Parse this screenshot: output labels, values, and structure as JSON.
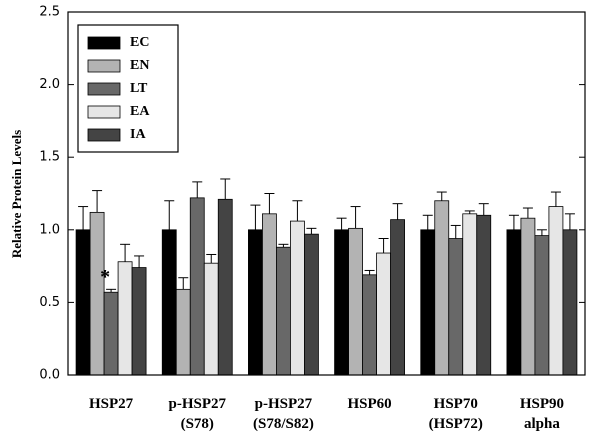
{
  "chart_data": {
    "type": "bar",
    "y_label": "Relative Protein Levels",
    "categories": [
      "HSP27",
      "p-HSP27\n(S78)",
      "p-HSP27\n(S78/S82)",
      "HSP60",
      "HSP70\n(HSP72)",
      "HSP90\nalpha"
    ],
    "series": [
      {
        "name": "EC",
        "color": "#000000",
        "values": [
          1.0,
          1.0,
          1.0,
          1.0,
          1.0,
          1.0
        ],
        "errors": [
          0.16,
          0.2,
          0.17,
          0.08,
          0.1,
          0.1
        ]
      },
      {
        "name": "EN",
        "color": "#b3b3b3",
        "values": [
          1.12,
          0.59,
          1.11,
          1.01,
          1.2,
          1.08
        ],
        "errors": [
          0.15,
          0.08,
          0.14,
          0.15,
          0.06,
          0.07
        ]
      },
      {
        "name": "LT",
        "color": "#686868",
        "values": [
          0.57,
          1.22,
          0.88,
          0.69,
          0.94,
          0.96
        ],
        "errors": [
          0.02,
          0.11,
          0.02,
          0.03,
          0.09,
          0.04
        ]
      },
      {
        "name": "EA",
        "color": "#e6e6e6",
        "values": [
          0.78,
          0.77,
          1.06,
          0.84,
          1.11,
          1.16
        ],
        "errors": [
          0.12,
          0.06,
          0.14,
          0.1,
          0.02,
          0.1
        ]
      },
      {
        "name": "IA",
        "color": "#444444",
        "values": [
          0.74,
          1.21,
          0.97,
          1.07,
          1.1,
          1.0
        ],
        "errors": [
          0.08,
          0.14,
          0.04,
          0.11,
          0.08,
          0.11
        ]
      }
    ],
    "annotations": [
      "*"
    ],
    "ylim": [
      0,
      2.5
    ],
    "yticks": [
      {
        "value": 0,
        "label": "0.0"
      },
      {
        "value": 0.5,
        "label": "0.5"
      },
      {
        "value": 1,
        "label": "1.0"
      },
      {
        "value": 1.5,
        "label": "1.5"
      },
      {
        "value": 2,
        "label": "2.0"
      },
      {
        "value": 2.5,
        "label": "2.5"
      }
    ],
    "legend": "upper left"
  }
}
